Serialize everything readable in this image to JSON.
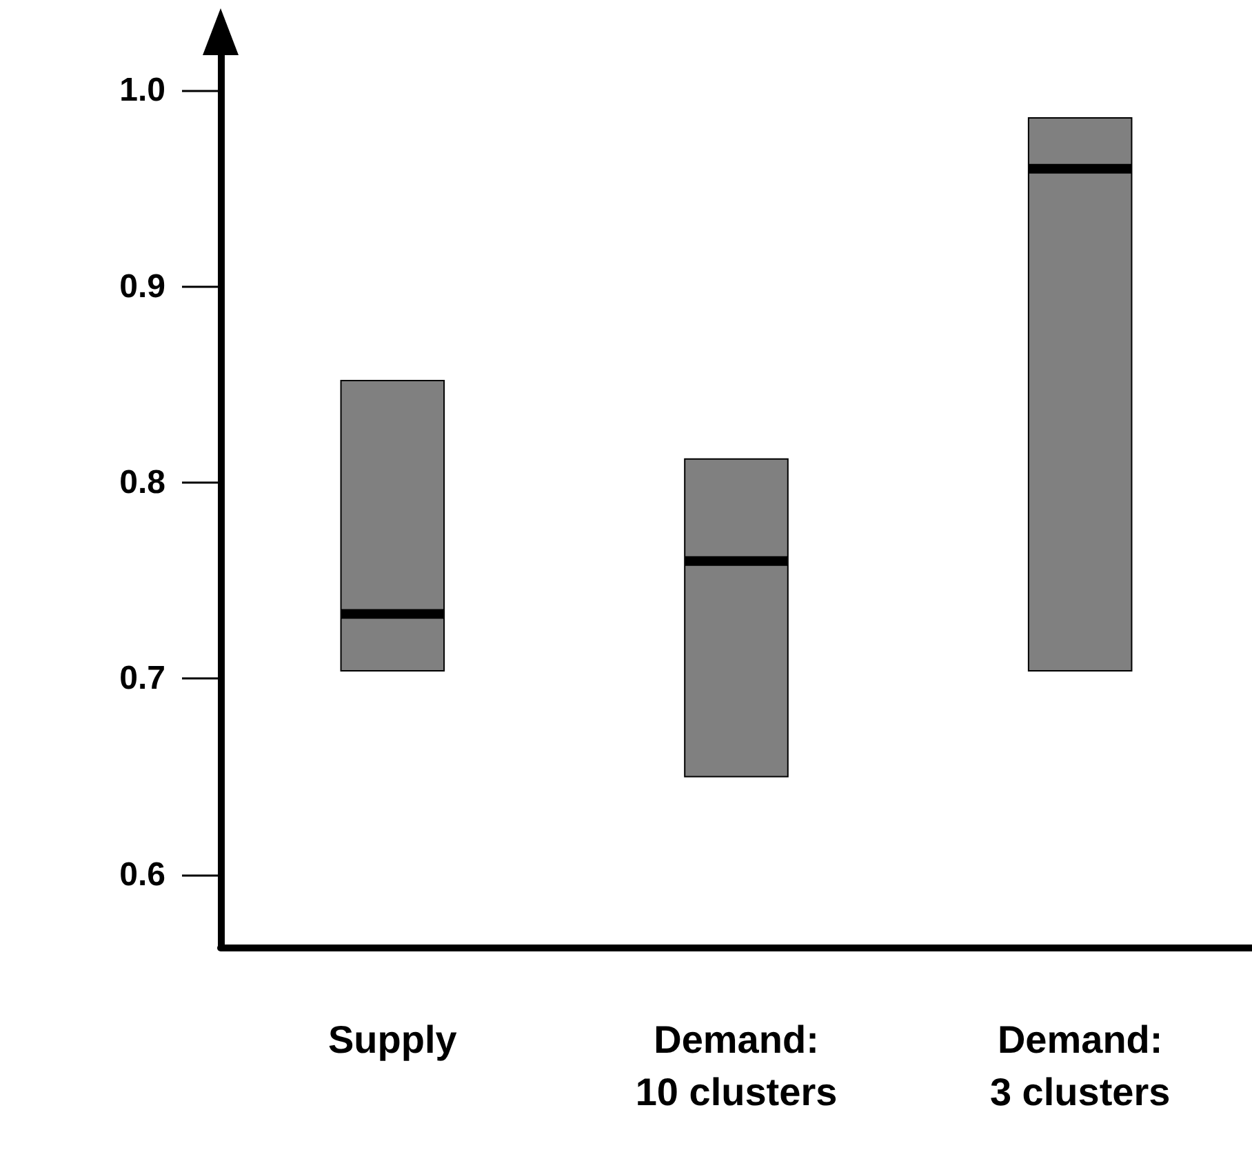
{
  "chart_data": {
    "type": "box",
    "categories": [
      "Supply",
      "Demand:\n10 clusters",
      "Demand:\n3 clusters"
    ],
    "series": [
      {
        "color": "#808080",
        "boxes": [
          {
            "low": 0.704,
            "q1": 0.704,
            "median": 0.733,
            "q3": 0.852,
            "high": 0.852
          },
          {
            "low": 0.65,
            "q1": 0.65,
            "median": 0.76,
            "q3": 0.812,
            "high": 0.812
          },
          {
            "low": 0.704,
            "q1": 0.704,
            "median": 0.96,
            "q3": 0.986,
            "high": 0.986
          }
        ]
      }
    ],
    "ylim": [
      0.563,
      1.025
    ],
    "yticks": [
      {
        "value": 0.6,
        "label": "0.6"
      },
      {
        "value": 0.7,
        "label": "0.7"
      },
      {
        "value": 0.8,
        "label": "0.8"
      },
      {
        "value": 0.9,
        "label": "0.9"
      },
      {
        "value": 1,
        "label": "1.0"
      }
    ],
    "grid": false
  }
}
